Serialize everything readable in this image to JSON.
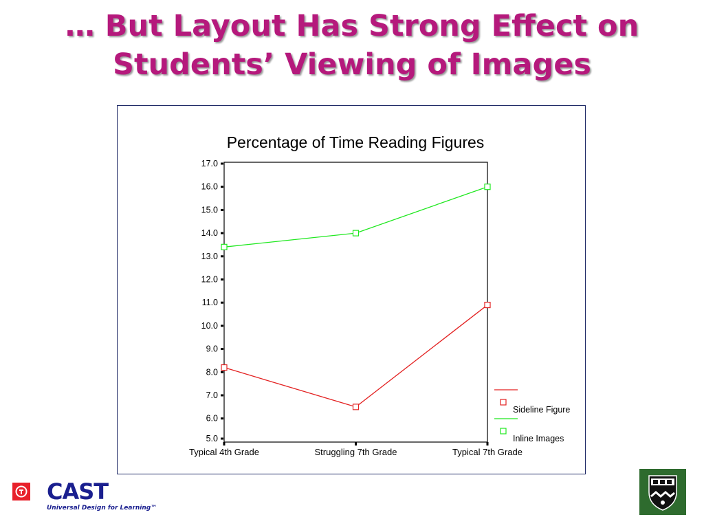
{
  "slide": {
    "title_line1": "… But Layout Has Strong Effect on",
    "title_line2": "Students’ Viewing of Images"
  },
  "colors": {
    "title": "#b5197c",
    "frame_border": "#1f2a66",
    "sideline": "#e32222",
    "inline": "#1fe81f"
  },
  "footer": {
    "cast_text": "CAST",
    "cast_tagline": "Universal Design for Learning™",
    "cast_icon": "cast-logo-icon",
    "shield_icon": "university-shield-icon"
  },
  "chart_data": {
    "type": "line",
    "title": "Percentage of Time Reading Figures",
    "xlabel": "",
    "ylabel": "",
    "categories": [
      "Typical 4th Grade",
      "Struggling 7th Grade",
      "Typical 7th Grade"
    ],
    "ylim": [
      5.0,
      17.0
    ],
    "yticks": [
      "5.0",
      "6.0",
      "7.0",
      "8.0",
      "9.0",
      "10.0",
      "11.0",
      "12.0",
      "13.0",
      "14.0",
      "15.0",
      "16.0",
      "17.0"
    ],
    "series": [
      {
        "name": "Sideline Figure",
        "color": "#e32222",
        "values": [
          8.2,
          6.5,
          10.9
        ]
      },
      {
        "name": "Inline Images",
        "color": "#1fe81f",
        "values": [
          13.4,
          14.0,
          16.0
        ]
      }
    ],
    "grid": false,
    "legend": "bottom-right"
  }
}
